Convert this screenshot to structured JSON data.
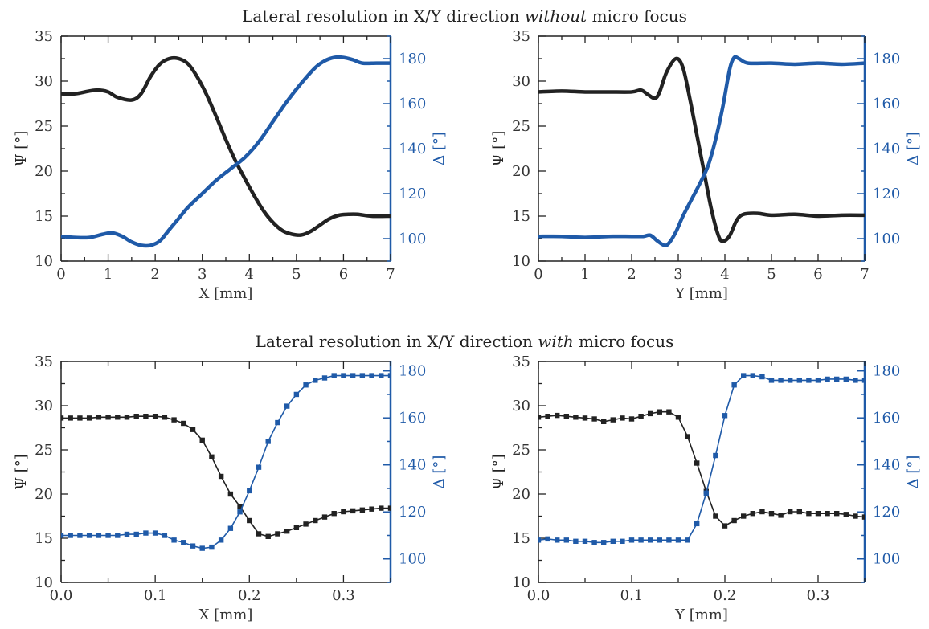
{
  "titles": {
    "top": {
      "pre": "Lateral resolution in X/Y direction ",
      "emph": "without",
      "post": " micro focus"
    },
    "bottom": {
      "pre": "Lateral resolution in X/Y direction ",
      "emph": "with",
      "post": " micro focus"
    }
  },
  "colors": {
    "psi": "#222222",
    "delta": "#1f5aa8"
  },
  "chart_data": [
    {
      "id": "top-left",
      "type": "line",
      "xlabel": "X [mm]",
      "ylabel": "Ψ [°]",
      "y2label": "Δ [°]",
      "xlim": [
        0,
        7
      ],
      "ylim": [
        10,
        35
      ],
      "y2lim": [
        90,
        190
      ],
      "xticks": [
        0,
        1,
        2,
        3,
        4,
        5,
        6,
        7
      ],
      "yticks": [
        10,
        15,
        20,
        25,
        30,
        35
      ],
      "y2ticks": [
        100,
        120,
        140,
        160,
        180
      ],
      "markers": false,
      "series": [
        {
          "axis": "left",
          "x": [
            0,
            0.3,
            0.6,
            0.8,
            1.0,
            1.2,
            1.5,
            1.7,
            1.9,
            2.1,
            2.3,
            2.5,
            2.7,
            2.9,
            3.1,
            3.3,
            3.5,
            3.7,
            3.9,
            4.1,
            4.3,
            4.5,
            4.7,
            4.9,
            5.1,
            5.3,
            5.5,
            5.7,
            5.9,
            6.1,
            6.3,
            6.6,
            7.0
          ],
          "y": [
            28.6,
            28.6,
            28.9,
            29.0,
            28.8,
            28.2,
            27.9,
            28.6,
            30.5,
            31.9,
            32.5,
            32.5,
            31.9,
            30.4,
            28.4,
            26.0,
            23.5,
            21.2,
            19.2,
            17.3,
            15.6,
            14.3,
            13.4,
            13.0,
            12.9,
            13.3,
            14.0,
            14.7,
            15.1,
            15.2,
            15.2,
            15.0,
            15.0
          ]
        },
        {
          "axis": "right",
          "x": [
            0,
            0.3,
            0.6,
            0.9,
            1.1,
            1.3,
            1.5,
            1.7,
            1.9,
            2.1,
            2.3,
            2.5,
            2.7,
            3.0,
            3.3,
            3.6,
            3.9,
            4.2,
            4.5,
            4.8,
            5.1,
            5.4,
            5.6,
            5.8,
            6.0,
            6.2,
            6.4,
            6.7,
            7.0
          ],
          "y": [
            101,
            100.5,
            100.5,
            102,
            102.5,
            101,
            98.5,
            97,
            97,
            99,
            104,
            109,
            114,
            120,
            126,
            131,
            136,
            143,
            152,
            161,
            169,
            176,
            179,
            180.5,
            180.5,
            179.5,
            178,
            178,
            178
          ]
        }
      ]
    },
    {
      "id": "top-right",
      "type": "line",
      "xlabel": "Y [mm]",
      "ylabel": "Ψ [°]",
      "y2label": "Δ [°]",
      "xlim": [
        0,
        7
      ],
      "ylim": [
        10,
        35
      ],
      "y2lim": [
        90,
        190
      ],
      "xticks": [
        0,
        1,
        2,
        3,
        4,
        5,
        6,
        7
      ],
      "yticks": [
        10,
        15,
        20,
        25,
        30,
        35
      ],
      "y2ticks": [
        100,
        120,
        140,
        160,
        180
      ],
      "markers": false,
      "series": [
        {
          "axis": "left",
          "x": [
            0,
            0.5,
            1.0,
            1.5,
            2.0,
            2.2,
            2.35,
            2.5,
            2.6,
            2.75,
            2.95,
            3.1,
            3.25,
            3.4,
            3.55,
            3.7,
            3.85,
            3.95,
            4.1,
            4.25,
            4.4,
            4.7,
            5.0,
            5.5,
            6.0,
            6.5,
            7.0
          ],
          "y": [
            28.8,
            28.9,
            28.8,
            28.8,
            28.8,
            29.0,
            28.5,
            28.1,
            28.8,
            31.0,
            32.5,
            31.5,
            28.0,
            24.0,
            20.0,
            16.0,
            13.0,
            12.2,
            12.8,
            14.5,
            15.2,
            15.3,
            15.1,
            15.2,
            15.0,
            15.1,
            15.1
          ]
        },
        {
          "axis": "right",
          "x": [
            0,
            0.5,
            1.0,
            1.5,
            2.0,
            2.25,
            2.4,
            2.55,
            2.7,
            2.8,
            2.95,
            3.1,
            3.3,
            3.5,
            3.65,
            3.8,
            3.95,
            4.1,
            4.2,
            4.3,
            4.5,
            5.0,
            5.5,
            6.0,
            6.5,
            7.0
          ],
          "y": [
            101,
            101,
            100.5,
            101,
            101,
            101,
            101.5,
            99,
            97,
            98,
            103,
            110,
            118,
            126,
            133,
            144,
            158,
            175,
            180.5,
            180,
            178,
            178,
            177.5,
            178,
            177.5,
            178
          ]
        }
      ]
    },
    {
      "id": "bottom-left",
      "type": "line",
      "xlabel": "X [mm]",
      "ylabel": "Ψ [°]",
      "y2label": "Δ [°]",
      "xlim": [
        0,
        0.35
      ],
      "ylim": [
        10,
        35
      ],
      "y2lim": [
        90,
        184
      ],
      "xticks": [
        0.0,
        0.1,
        0.2,
        0.3
      ],
      "xticklabels": [
        "0.0",
        "0.1",
        "0.2",
        "0.3"
      ],
      "yticks": [
        10,
        15,
        20,
        25,
        30,
        35
      ],
      "y2ticks": [
        100,
        120,
        140,
        160,
        180
      ],
      "markers": true,
      "series": [
        {
          "axis": "left",
          "x": [
            0,
            0.01,
            0.02,
            0.03,
            0.04,
            0.05,
            0.06,
            0.07,
            0.08,
            0.09,
            0.1,
            0.11,
            0.12,
            0.13,
            0.14,
            0.15,
            0.16,
            0.17,
            0.18,
            0.19,
            0.2,
            0.21,
            0.22,
            0.23,
            0.24,
            0.25,
            0.26,
            0.27,
            0.28,
            0.29,
            0.3,
            0.31,
            0.32,
            0.33,
            0.34,
            0.35
          ],
          "y": [
            28.6,
            28.6,
            28.6,
            28.6,
            28.7,
            28.7,
            28.7,
            28.7,
            28.8,
            28.8,
            28.8,
            28.7,
            28.4,
            28.0,
            27.3,
            26.1,
            24.2,
            22.0,
            20.0,
            18.6,
            17.0,
            15.5,
            15.2,
            15.5,
            15.8,
            16.2,
            16.6,
            17.0,
            17.4,
            17.8,
            18.0,
            18.1,
            18.2,
            18.3,
            18.4,
            18.4
          ]
        },
        {
          "axis": "right",
          "x": [
            0,
            0.01,
            0.02,
            0.03,
            0.04,
            0.05,
            0.06,
            0.07,
            0.08,
            0.09,
            0.1,
            0.11,
            0.12,
            0.13,
            0.14,
            0.15,
            0.16,
            0.17,
            0.18,
            0.19,
            0.2,
            0.21,
            0.22,
            0.23,
            0.24,
            0.25,
            0.26,
            0.27,
            0.28,
            0.29,
            0.3,
            0.31,
            0.32,
            0.33,
            0.34,
            0.35
          ],
          "y": [
            110,
            110,
            110,
            110,
            110,
            110,
            110,
            110.5,
            110.5,
            111,
            111,
            110,
            108,
            107,
            105.5,
            104.5,
            105,
            108,
            113,
            120,
            129,
            139,
            150,
            158,
            165,
            170,
            174,
            176,
            177,
            178,
            178,
            178,
            178,
            178,
            178,
            178
          ]
        }
      ]
    },
    {
      "id": "bottom-right",
      "type": "line",
      "xlabel": "Y [mm]",
      "ylabel": "Ψ [°]",
      "y2label": "Δ [°]",
      "xlim": [
        0,
        0.35
      ],
      "ylim": [
        10,
        35
      ],
      "y2lim": [
        90,
        184
      ],
      "xticks": [
        0.0,
        0.1,
        0.2,
        0.3
      ],
      "xticklabels": [
        "0.0",
        "0.1",
        "0.2",
        "0.3"
      ],
      "yticks": [
        10,
        15,
        20,
        25,
        30,
        35
      ],
      "y2ticks": [
        100,
        120,
        140,
        160,
        180
      ],
      "markers": true,
      "series": [
        {
          "axis": "left",
          "x": [
            0,
            0.01,
            0.02,
            0.03,
            0.04,
            0.05,
            0.06,
            0.07,
            0.08,
            0.09,
            0.1,
            0.11,
            0.12,
            0.13,
            0.14,
            0.15,
            0.16,
            0.17,
            0.18,
            0.19,
            0.2,
            0.21,
            0.22,
            0.23,
            0.24,
            0.25,
            0.26,
            0.27,
            0.28,
            0.29,
            0.3,
            0.31,
            0.32,
            0.33,
            0.34,
            0.35
          ],
          "y": [
            28.7,
            28.8,
            28.9,
            28.8,
            28.7,
            28.6,
            28.5,
            28.2,
            28.4,
            28.6,
            28.5,
            28.8,
            29.1,
            29.3,
            29.3,
            28.7,
            26.5,
            23.5,
            20.3,
            17.5,
            16.4,
            17.0,
            17.5,
            17.8,
            18.0,
            17.8,
            17.6,
            18.0,
            18.0,
            17.8,
            17.8,
            17.8,
            17.8,
            17.7,
            17.5,
            17.4
          ]
        },
        {
          "axis": "right",
          "x": [
            0,
            0.01,
            0.02,
            0.03,
            0.04,
            0.05,
            0.06,
            0.07,
            0.08,
            0.09,
            0.1,
            0.11,
            0.12,
            0.13,
            0.14,
            0.15,
            0.16,
            0.17,
            0.18,
            0.19,
            0.2,
            0.21,
            0.22,
            0.23,
            0.24,
            0.25,
            0.26,
            0.27,
            0.28,
            0.29,
            0.3,
            0.31,
            0.32,
            0.33,
            0.34,
            0.35
          ],
          "y": [
            108,
            108.5,
            108,
            108,
            107.5,
            107.5,
            107,
            107,
            107.5,
            107.5,
            108,
            108,
            108,
            108,
            108,
            108,
            108,
            115,
            128,
            144,
            161,
            174,
            178,
            178,
            177.5,
            176,
            176,
            176,
            176,
            176,
            176,
            176.5,
            176.5,
            176.5,
            176,
            176
          ]
        }
      ]
    }
  ]
}
